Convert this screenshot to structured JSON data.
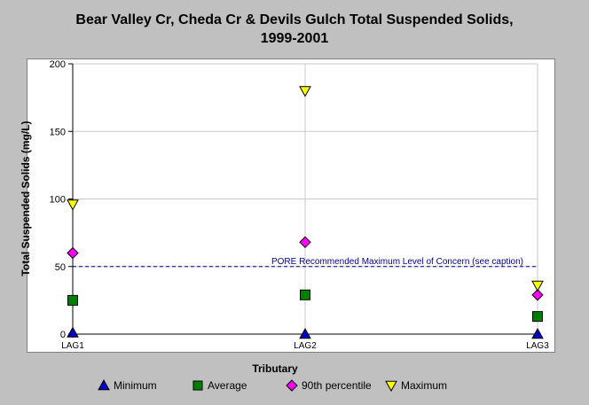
{
  "title_line1": "Bear Valley Cr, Cheda Cr & Devils Gulch Total Suspended Solids,",
  "title_line2": "1999-2001",
  "chart_data": {
    "type": "scatter",
    "title": "Bear Valley Cr, Cheda Cr & Devils Gulch Total Suspended Solids, 1999-2001",
    "xlabel": "Tributary",
    "ylabel": "Total Suspended Solids (mg/L)",
    "categories": [
      "LAG1",
      "LAG2",
      "LAG3"
    ],
    "ylim": [
      0,
      200
    ],
    "yticks": [
      0,
      50,
      100,
      150,
      200
    ],
    "grid": true,
    "legend_position": "bottom",
    "series": [
      {
        "name": "Minimum",
        "marker": "triangle-up",
        "color": "#0000cc",
        "values": [
          1,
          0,
          0
        ]
      },
      {
        "name": "Average",
        "marker": "square",
        "color": "#008000",
        "values": [
          25,
          29,
          13
        ]
      },
      {
        "name": "90th percentile",
        "marker": "diamond",
        "color": "#ff00ff",
        "values": [
          60,
          68,
          29
        ]
      },
      {
        "name": "Maximum",
        "marker": "triangle-down",
        "color": "#ffff00",
        "values": [
          96,
          180,
          36
        ]
      }
    ],
    "reference_line": {
      "value": 50,
      "label": "PORE Recommended Maximum Level of Concern (see caption)",
      "color": "#000099"
    }
  }
}
